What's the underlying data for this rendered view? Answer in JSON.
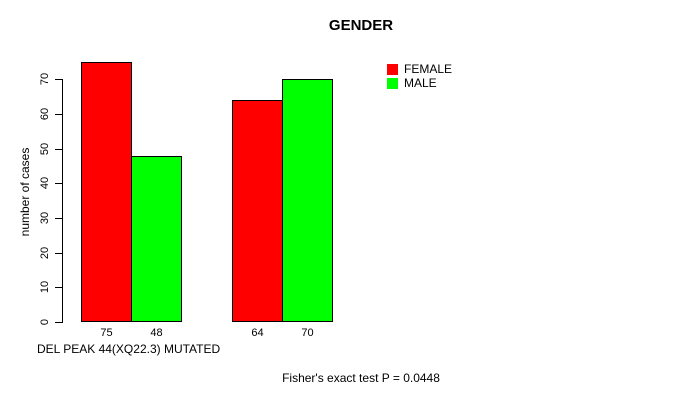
{
  "chart_data": {
    "type": "bar",
    "title": "GENDER",
    "ylabel": "number of cases",
    "yticks": [
      0,
      10,
      20,
      30,
      40,
      50,
      60,
      70
    ],
    "ylim": [
      0,
      75
    ],
    "grid": false,
    "legend_position": "top-right",
    "series": [
      {
        "name": "FEMALE",
        "color": "#ff0000",
        "values": [
          75,
          64
        ]
      },
      {
        "name": "MALE",
        "color": "#00ff00",
        "values": [
          48,
          70
        ]
      }
    ],
    "bar_value_labels": [
      "75",
      "48",
      "64",
      "70"
    ],
    "footnote_left": "DEL PEAK 44(XQ22.3) MUTATED",
    "footnote_center": "Fisher's exact test P = 0.0448"
  }
}
